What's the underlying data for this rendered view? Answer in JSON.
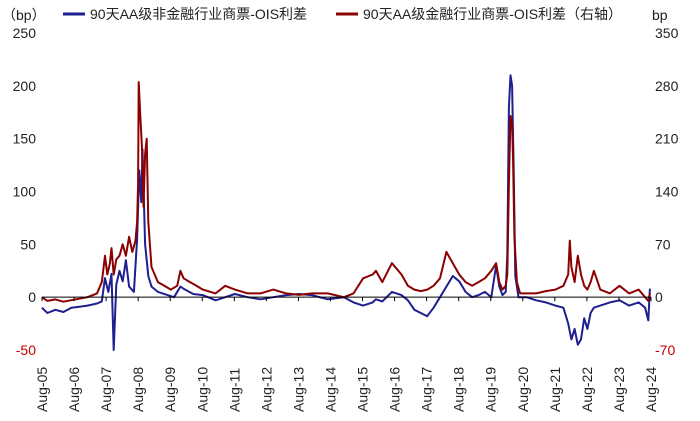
{
  "chart_data": {
    "type": "line",
    "left_unit": "（bp）",
    "right_unit": "bp",
    "left_axis": {
      "min": -50,
      "max": 250,
      "ticks": [
        -50,
        0,
        50,
        100,
        150,
        200,
        250
      ]
    },
    "right_axis": {
      "min": -70,
      "max": 350,
      "ticks": [
        -70,
        0,
        70,
        140,
        210,
        280,
        350
      ]
    },
    "x_ticks": [
      "Aug-05",
      "Aug-06",
      "Aug-07",
      "Aug-08",
      "Aug-09",
      "Aug-10",
      "Aug-11",
      "Aug-12",
      "Aug-13",
      "Aug-14",
      "Aug-15",
      "Aug-16",
      "Aug-17",
      "Aug-18",
      "Aug-19",
      "Aug-20",
      "Aug-21",
      "Aug-22",
      "Aug-23",
      "Aug-24"
    ],
    "x_range": [
      2005.583,
      2024.583
    ],
    "legend": {
      "placement": "top"
    },
    "series": [
      {
        "name": "90天AA级非金融行业商票-OIS利差",
        "axis": "left",
        "color": "#1f1f8f",
        "points": [
          [
            2005.58,
            -10
          ],
          [
            2005.75,
            -15
          ],
          [
            2006.0,
            -12
          ],
          [
            2006.25,
            -14
          ],
          [
            2006.5,
            -10
          ],
          [
            2006.75,
            -9
          ],
          [
            2007.0,
            -8
          ],
          [
            2007.3,
            -6
          ],
          [
            2007.45,
            -4
          ],
          [
            2007.55,
            18
          ],
          [
            2007.65,
            5
          ],
          [
            2007.75,
            22
          ],
          [
            2007.82,
            -50
          ],
          [
            2007.9,
            12
          ],
          [
            2008.0,
            25
          ],
          [
            2008.1,
            15
          ],
          [
            2008.2,
            35
          ],
          [
            2008.3,
            10
          ],
          [
            2008.45,
            5
          ],
          [
            2008.55,
            55
          ],
          [
            2008.62,
            120
          ],
          [
            2008.68,
            90
          ],
          [
            2008.72,
            140
          ],
          [
            2008.8,
            50
          ],
          [
            2008.9,
            20
          ],
          [
            2009.0,
            10
          ],
          [
            2009.2,
            5
          ],
          [
            2009.5,
            2
          ],
          [
            2009.7,
            0
          ],
          [
            2009.9,
            10
          ],
          [
            2010.0,
            8
          ],
          [
            2010.3,
            3
          ],
          [
            2010.6,
            2
          ],
          [
            2011.0,
            -3
          ],
          [
            2011.3,
            0
          ],
          [
            2011.6,
            3
          ],
          [
            2012.0,
            0
          ],
          [
            2012.4,
            -2
          ],
          [
            2012.8,
            0
          ],
          [
            2013.2,
            2
          ],
          [
            2013.6,
            3
          ],
          [
            2014.0,
            2
          ],
          [
            2014.5,
            -2
          ],
          [
            2015.0,
            0
          ],
          [
            2015.3,
            -5
          ],
          [
            2015.6,
            -8
          ],
          [
            2015.9,
            -5
          ],
          [
            2016.0,
            -2
          ],
          [
            2016.2,
            -4
          ],
          [
            2016.5,
            5
          ],
          [
            2016.8,
            2
          ],
          [
            2017.0,
            -3
          ],
          [
            2017.2,
            -12
          ],
          [
            2017.4,
            -15
          ],
          [
            2017.6,
            -18
          ],
          [
            2017.8,
            -10
          ],
          [
            2018.0,
            0
          ],
          [
            2018.2,
            10
          ],
          [
            2018.4,
            20
          ],
          [
            2018.6,
            15
          ],
          [
            2018.8,
            5
          ],
          [
            2019.0,
            0
          ],
          [
            2019.2,
            2
          ],
          [
            2019.4,
            5
          ],
          [
            2019.6,
            0
          ],
          [
            2019.75,
            30
          ],
          [
            2019.85,
            10
          ],
          [
            2019.95,
            2
          ],
          [
            2020.05,
            5
          ],
          [
            2020.1,
            40
          ],
          [
            2020.15,
            180
          ],
          [
            2020.2,
            210
          ],
          [
            2020.25,
            200
          ],
          [
            2020.3,
            120
          ],
          [
            2020.35,
            20
          ],
          [
            2020.45,
            0
          ],
          [
            2020.7,
            0
          ],
          [
            2021.0,
            -3
          ],
          [
            2021.3,
            -5
          ],
          [
            2021.6,
            -8
          ],
          [
            2021.85,
            -10
          ],
          [
            2022.0,
            -25
          ],
          [
            2022.1,
            -40
          ],
          [
            2022.2,
            -30
          ],
          [
            2022.3,
            -45
          ],
          [
            2022.4,
            -40
          ],
          [
            2022.5,
            -20
          ],
          [
            2022.6,
            -30
          ],
          [
            2022.7,
            -15
          ],
          [
            2022.8,
            -10
          ],
          [
            2023.0,
            -8
          ],
          [
            2023.3,
            -5
          ],
          [
            2023.6,
            -3
          ],
          [
            2023.9,
            -8
          ],
          [
            2024.2,
            -5
          ],
          [
            2024.4,
            -10
          ],
          [
            2024.5,
            -22
          ],
          [
            2024.55,
            8
          ]
        ]
      },
      {
        "name": "90天AA级金融行业商票-OIS利差（右轴）",
        "axis": "right",
        "color": "#8b0000",
        "points": [
          [
            2005.58,
            0
          ],
          [
            2005.75,
            -5
          ],
          [
            2006.0,
            -3
          ],
          [
            2006.25,
            -6
          ],
          [
            2006.5,
            -4
          ],
          [
            2006.75,
            -2
          ],
          [
            2007.0,
            0
          ],
          [
            2007.3,
            5
          ],
          [
            2007.45,
            20
          ],
          [
            2007.55,
            55
          ],
          [
            2007.62,
            30
          ],
          [
            2007.7,
            45
          ],
          [
            2007.75,
            65
          ],
          [
            2007.82,
            30
          ],
          [
            2007.9,
            50
          ],
          [
            2008.0,
            55
          ],
          [
            2008.1,
            70
          ],
          [
            2008.2,
            55
          ],
          [
            2008.3,
            80
          ],
          [
            2008.4,
            60
          ],
          [
            2008.5,
            75
          ],
          [
            2008.55,
            100
          ],
          [
            2008.58,
            150
          ],
          [
            2008.6,
            285
          ],
          [
            2008.65,
            240
          ],
          [
            2008.7,
            200
          ],
          [
            2008.75,
            120
          ],
          [
            2008.8,
            190
          ],
          [
            2008.85,
            210
          ],
          [
            2008.9,
            100
          ],
          [
            2009.0,
            40
          ],
          [
            2009.2,
            20
          ],
          [
            2009.4,
            15
          ],
          [
            2009.6,
            10
          ],
          [
            2009.8,
            15
          ],
          [
            2009.9,
            35
          ],
          [
            2010.0,
            25
          ],
          [
            2010.2,
            20
          ],
          [
            2010.4,
            15
          ],
          [
            2010.6,
            10
          ],
          [
            2011.0,
            5
          ],
          [
            2011.3,
            15
          ],
          [
            2011.6,
            10
          ],
          [
            2012.0,
            5
          ],
          [
            2012.4,
            5
          ],
          [
            2012.8,
            10
          ],
          [
            2013.2,
            5
          ],
          [
            2013.6,
            3
          ],
          [
            2014.0,
            5
          ],
          [
            2014.5,
            5
          ],
          [
            2015.0,
            0
          ],
          [
            2015.3,
            5
          ],
          [
            2015.6,
            25
          ],
          [
            2015.9,
            30
          ],
          [
            2016.0,
            35
          ],
          [
            2016.2,
            20
          ],
          [
            2016.5,
            45
          ],
          [
            2016.8,
            30
          ],
          [
            2017.0,
            15
          ],
          [
            2017.2,
            10
          ],
          [
            2017.4,
            8
          ],
          [
            2017.6,
            10
          ],
          [
            2017.8,
            15
          ],
          [
            2018.0,
            25
          ],
          [
            2018.2,
            60
          ],
          [
            2018.4,
            45
          ],
          [
            2018.6,
            30
          ],
          [
            2018.8,
            20
          ],
          [
            2019.0,
            15
          ],
          [
            2019.2,
            20
          ],
          [
            2019.4,
            25
          ],
          [
            2019.6,
            35
          ],
          [
            2019.75,
            45
          ],
          [
            2019.85,
            20
          ],
          [
            2019.95,
            10
          ],
          [
            2020.05,
            15
          ],
          [
            2020.1,
            30
          ],
          [
            2020.15,
            150
          ],
          [
            2020.2,
            240
          ],
          [
            2020.25,
            230
          ],
          [
            2020.28,
            180
          ],
          [
            2020.32,
            80
          ],
          [
            2020.4,
            20
          ],
          [
            2020.5,
            5
          ],
          [
            2020.7,
            5
          ],
          [
            2021.0,
            5
          ],
          [
            2021.3,
            8
          ],
          [
            2021.6,
            10
          ],
          [
            2021.85,
            15
          ],
          [
            2022.0,
            30
          ],
          [
            2022.05,
            75
          ],
          [
            2022.1,
            40
          ],
          [
            2022.2,
            20
          ],
          [
            2022.3,
            55
          ],
          [
            2022.4,
            30
          ],
          [
            2022.5,
            15
          ],
          [
            2022.6,
            10
          ],
          [
            2022.7,
            20
          ],
          [
            2022.8,
            35
          ],
          [
            2023.0,
            10
          ],
          [
            2023.3,
            5
          ],
          [
            2023.6,
            15
          ],
          [
            2023.9,
            5
          ],
          [
            2024.2,
            10
          ],
          [
            2024.4,
            0
          ],
          [
            2024.5,
            -5
          ],
          [
            2024.55,
            5
          ]
        ]
      }
    ]
  }
}
